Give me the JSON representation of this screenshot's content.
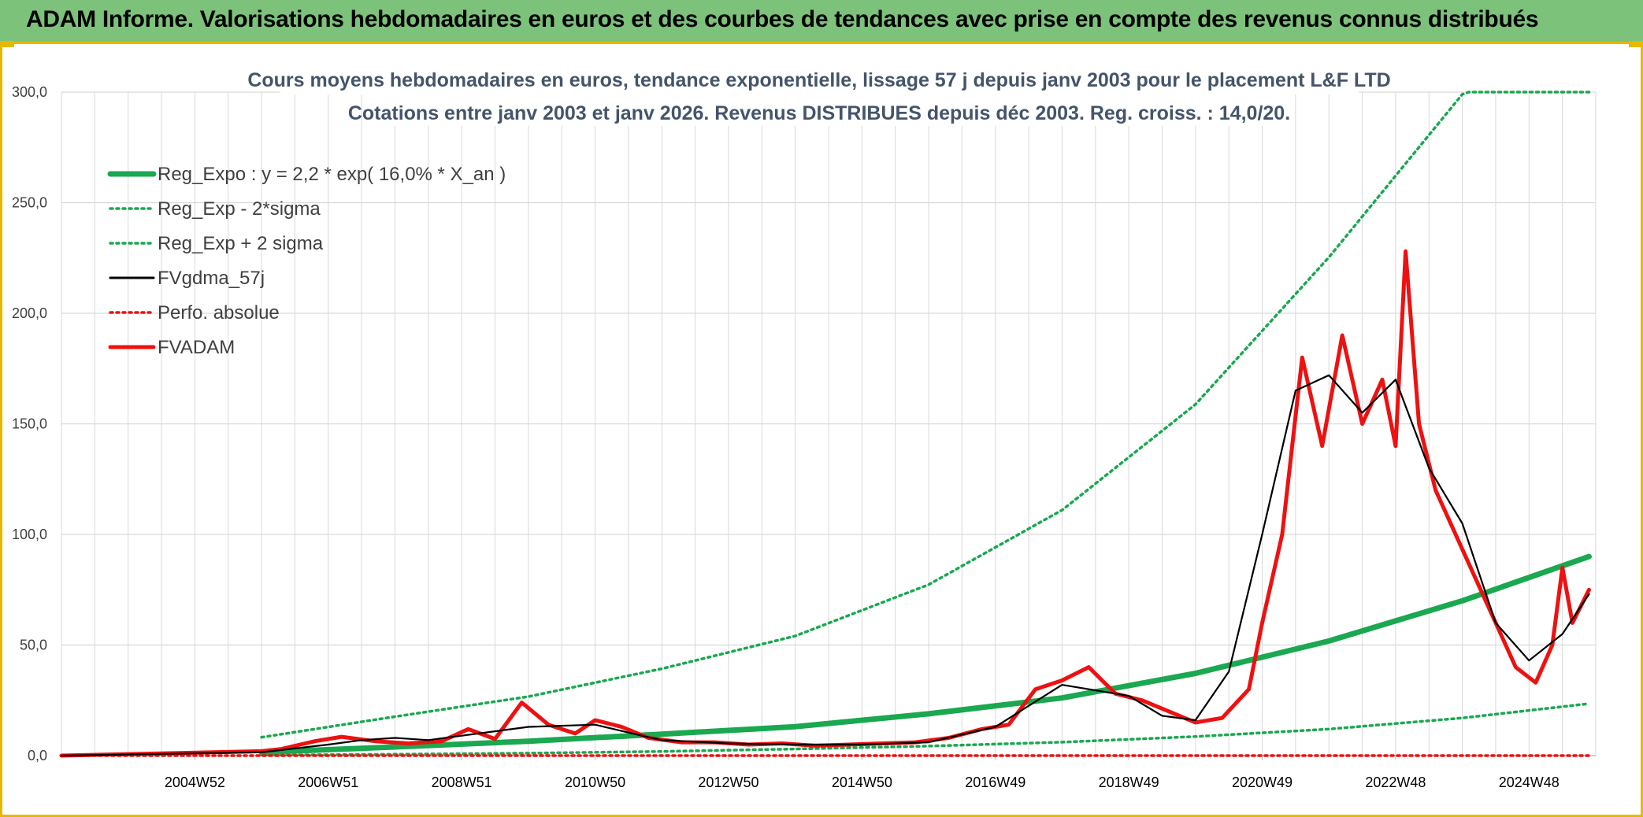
{
  "banner": {
    "title": "ADAM Informe. Valorisations hebdomadaires en euros et des courbes de tendances avec prise en compte des revenus connus distribués"
  },
  "colors": {
    "banner_bg": "#7cc27a",
    "frame": "#e6b800",
    "reg_green": "#1aa850",
    "fvadam_red": "#ee1111",
    "fvgdma_black": "#000000",
    "title": "#44546a"
  },
  "chart_data": {
    "type": "line",
    "title": "Cours moyens hebdomadaires en euros, tendance exponentielle, lissage 57 j depuis janv 2003 pour le placement L&F LTD",
    "subtitle": "Cotations entre janv 2003 et janv 2026. Revenus DISTRIBUES depuis déc 2003. Reg. croiss. : 14,0/20.",
    "ylim": [
      0,
      300
    ],
    "y_ticks": [
      "0,0",
      "50,0",
      "100,0",
      "150,0",
      "200,0",
      "250,0",
      "300,0"
    ],
    "x_range": [
      2003.0,
      2026.0
    ],
    "x_ticks": [
      "2004W52",
      "2006W51",
      "2008W51",
      "2010W50",
      "2012W50",
      "2014W50",
      "2016W49",
      "2018W49",
      "2020W49",
      "2022W48",
      "2024W48"
    ],
    "grid": true,
    "legend_position": "top-left",
    "series": [
      {
        "name": "Reg_Expo : y = 2,2 * exp( 16,0% *  X_an )",
        "style": "solid-thick",
        "color": "#1aa850",
        "x": [
          2006.0,
          2008.0,
          2010.0,
          2012.0,
          2014.0,
          2016.0,
          2018.0,
          2020.0,
          2022.0,
          2024.0,
          2025.9
        ],
        "y": [
          1.5,
          3.9,
          6.5,
          9.7,
          13.1,
          18.9,
          26.1,
          37.2,
          51.8,
          70.0,
          90.0
        ]
      },
      {
        "name": "Reg_Exp - 2*sigma",
        "style": "dotted",
        "color": "#1aa850",
        "x": [
          2006.0,
          2008.0,
          2010.0,
          2012.0,
          2014.0,
          2016.0,
          2018.0,
          2020.0,
          2022.0,
          2024.0,
          2025.9
        ],
        "y": [
          0.2,
          0.6,
          1.1,
          1.9,
          3.0,
          4.3,
          6.1,
          8.6,
          12.0,
          17.0,
          23.5
        ]
      },
      {
        "name": "Reg_Exp + 2 sigma",
        "style": "dotted",
        "color": "#1aa850",
        "x": [
          2006.0,
          2008.0,
          2010.0,
          2012.0,
          2014.0,
          2016.0,
          2018.0,
          2020.0,
          2022.0,
          2024.0,
          2024.1,
          2025.9
        ],
        "y": [
          8.3,
          17.6,
          26.7,
          39.3,
          54.1,
          77.3,
          111.0,
          158.8,
          225.3,
          299.0,
          300.0,
          300.0
        ]
      },
      {
        "name": "FVgdma_57j",
        "style": "solid-thin",
        "color": "#000000",
        "x": [
          2003.0,
          2006.0,
          2007.0,
          2007.5,
          2008.0,
          2008.5,
          2009.0,
          2010.0,
          2011.0,
          2011.7,
          2012.0,
          2013.0,
          2014.0,
          2015.0,
          2016.0,
          2017.0,
          2018.0,
          2019.0,
          2019.5,
          2020.0,
          2020.5,
          2021.0,
          2021.5,
          2022.0,
          2022.5,
          2023.0,
          2023.5,
          2024.0,
          2024.5,
          2025.0,
          2025.5,
          2025.9
        ],
        "y": [
          0,
          1.5,
          5.0,
          7.0,
          8.0,
          7.0,
          9.0,
          13.0,
          14.0,
          9.0,
          7.0,
          5.5,
          5.0,
          5.0,
          6.0,
          13.0,
          32.0,
          27.0,
          18.0,
          16.0,
          38.0,
          100.0,
          165.0,
          172.0,
          155.0,
          170.0,
          130.0,
          105.0,
          60.0,
          43.0,
          55.0,
          73.0
        ]
      },
      {
        "name": "Perfo. absolue",
        "style": "dotted",
        "color": "#ee1111",
        "x": [
          2003.0,
          2025.9
        ],
        "y": [
          0,
          0
        ]
      },
      {
        "name": "FVADAM",
        "style": "solid-thick",
        "color": "#ee1111",
        "x": [
          2003.0,
          2006.0,
          2006.3,
          2006.8,
          2007.2,
          2007.7,
          2008.2,
          2008.7,
          2009.1,
          2009.5,
          2009.9,
          2010.3,
          2010.7,
          2011.0,
          2011.4,
          2011.8,
          2012.3,
          2012.8,
          2013.3,
          2013.8,
          2014.3,
          2014.8,
          2015.3,
          2015.8,
          2016.3,
          2016.8,
          2017.2,
          2017.6,
          2018.0,
          2018.4,
          2018.8,
          2019.2,
          2019.6,
          2020.0,
          2020.4,
          2020.8,
          2021.0,
          2021.3,
          2021.6,
          2021.9,
          2022.2,
          2022.5,
          2022.8,
          2023.0,
          2023.15,
          2023.35,
          2023.6,
          2023.9,
          2024.2,
          2024.5,
          2024.8,
          2025.1,
          2025.35,
          2025.5,
          2025.65,
          2025.9
        ],
        "y": [
          0,
          2.0,
          3.0,
          6.5,
          8.5,
          6.5,
          5.5,
          6.5,
          12.0,
          7.5,
          24.0,
          14.0,
          10.0,
          16.0,
          13.0,
          8.0,
          6.0,
          6.0,
          5.0,
          5.5,
          4.5,
          5.0,
          5.5,
          6.0,
          8.0,
          12.0,
          14.0,
          30.0,
          34.0,
          40.0,
          28.0,
          25.0,
          20.0,
          15.0,
          17.0,
          30.0,
          60.0,
          100.0,
          180.0,
          140.0,
          190.0,
          150.0,
          170.0,
          140.0,
          228.0,
          150.0,
          120.0,
          100.0,
          80.0,
          60.0,
          40.0,
          33.0,
          50.0,
          85.0,
          60.0,
          75.0
        ]
      }
    ]
  }
}
